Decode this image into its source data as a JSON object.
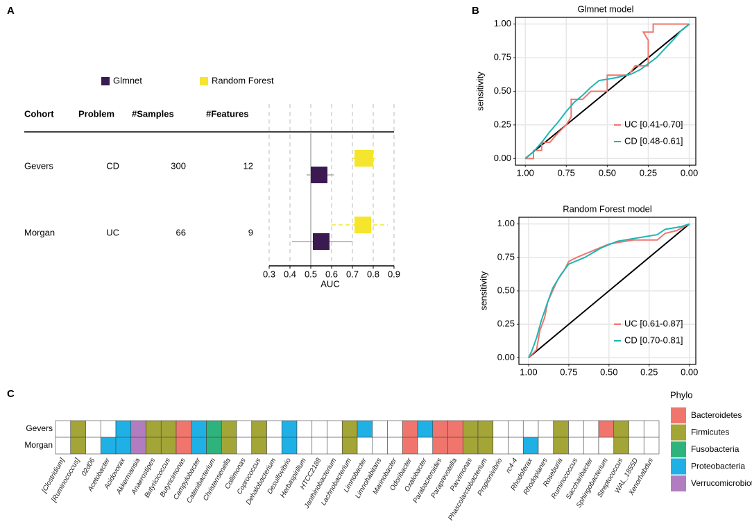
{
  "chart_data": [
    {
      "type": "forest",
      "panel": "A",
      "table": {
        "columns": [
          "Cohort",
          "Problem",
          "#Samples",
          "#Features"
        ],
        "rows": [
          [
            "Gevers",
            "CD",
            300,
            12
          ],
          [
            "Morgan",
            "UC",
            66,
            9
          ]
        ]
      },
      "series": [
        {
          "name": "Glmnet",
          "color": "#3b1a52",
          "whisker_color": "#aaaaaa",
          "whisker_style": "solid",
          "low": [
            0.48,
            0.41
          ],
          "box_low": [
            0.5,
            0.51
          ],
          "box_high": [
            0.58,
            0.59
          ],
          "high": [
            0.61,
            0.7
          ]
        },
        {
          "name": "Random Forest",
          "color": "#f5e52d",
          "whisker_color": "#f5e52d",
          "whisker_style": "dashed",
          "low": [
            0.7,
            0.6
          ],
          "box_low": [
            0.71,
            0.71
          ],
          "box_high": [
            0.8,
            0.79
          ],
          "high": [
            0.81,
            0.87
          ]
        }
      ],
      "xlabel": "AUC",
      "xlim": [
        0.3,
        0.9
      ],
      "xticks": [
        0.3,
        0.4,
        0.5,
        0.6,
        0.7,
        0.8,
        0.9
      ],
      "reference": 0.5,
      "grid": true
    },
    {
      "type": "line",
      "panel": "B",
      "title": "Glmnet model",
      "ylabel": "sensitivity",
      "xlim": [
        1.06,
        -0.04
      ],
      "ylim": [
        -0.05,
        1.05
      ],
      "xticks": [
        {
          "value": 1,
          "label": "1.00"
        },
        {
          "value": 0.75,
          "label": "0.75"
        },
        {
          "value": 0.5,
          "label": "0.50"
        },
        {
          "value": 0.25,
          "label": "0.25"
        },
        {
          "value": 0,
          "label": "0.00"
        }
      ],
      "yticks": [
        {
          "value": 0,
          "label": "0.00"
        },
        {
          "value": 0.25,
          "label": "0.25"
        },
        {
          "value": 0.5,
          "label": "0.50"
        },
        {
          "value": 0.75,
          "label": "0.75"
        },
        {
          "value": 1,
          "label": "1.00"
        }
      ],
      "grid": true,
      "diagonal": true,
      "legend": "bottom-right",
      "series": [
        {
          "name": "UC [0.41-0.70]",
          "color": "#f0766d",
          "x": [
            1,
            0.95,
            0.95,
            0.9,
            0.9,
            0.85,
            0.8,
            0.75,
            0.72,
            0.72,
            0.65,
            0.6,
            0.5,
            0.5,
            0.37,
            0.33,
            0.25,
            0.25,
            0.28,
            0.22,
            0.22,
            0.05,
            0
          ],
          "values": [
            0,
            0,
            0.06,
            0.06,
            0.12,
            0.12,
            0.19,
            0.25,
            0.31,
            0.44,
            0.44,
            0.5,
            0.5,
            0.62,
            0.62,
            0.69,
            0.69,
            0.88,
            0.94,
            0.94,
            1,
            1,
            1
          ]
        },
        {
          "name": "CD [0.48-0.61]",
          "color": "#1fb5b5",
          "x": [
            1,
            0.95,
            0.9,
            0.85,
            0.8,
            0.75,
            0.7,
            0.65,
            0.6,
            0.55,
            0.45,
            0.35,
            0.3,
            0.2,
            0.1,
            0.05,
            0
          ],
          "values": [
            0,
            0.05,
            0.12,
            0.2,
            0.27,
            0.35,
            0.42,
            0.47,
            0.53,
            0.58,
            0.6,
            0.63,
            0.66,
            0.75,
            0.88,
            0.95,
            1
          ]
        }
      ]
    },
    {
      "type": "line",
      "title": "Random Forest model",
      "ylabel": "sensitivity",
      "xlim": [
        1.06,
        -0.04
      ],
      "ylim": [
        -0.05,
        1.05
      ],
      "xticks": [
        {
          "value": 1,
          "label": "1.00"
        },
        {
          "value": 0.75,
          "label": "0.75"
        },
        {
          "value": 0.5,
          "label": "0.50"
        },
        {
          "value": 0.25,
          "label": "0.25"
        },
        {
          "value": 0,
          "label": "0.00"
        }
      ],
      "yticks": [
        {
          "value": 0,
          "label": "0.00"
        },
        {
          "value": 0.25,
          "label": "0.25"
        },
        {
          "value": 0.5,
          "label": "0.50"
        },
        {
          "value": 0.75,
          "label": "0.75"
        },
        {
          "value": 1,
          "label": "1.00"
        }
      ],
      "grid": true,
      "diagonal": true,
      "legend": "bottom-right",
      "series": [
        {
          "name": "UC [0.61-0.87]",
          "color": "#f0766d",
          "x": [
            1,
            0.95,
            0.93,
            0.9,
            0.88,
            0.85,
            0.82,
            0.78,
            0.75,
            0.7,
            0.6,
            0.5,
            0.35,
            0.2,
            0.15,
            0.08,
            0
          ],
          "values": [
            0,
            0.06,
            0.2,
            0.3,
            0.42,
            0.5,
            0.58,
            0.65,
            0.72,
            0.75,
            0.8,
            0.85,
            0.88,
            0.88,
            0.93,
            0.95,
            1
          ]
        },
        {
          "name": "CD [0.70-0.81]",
          "color": "#1fb5b5",
          "x": [
            1,
            0.98,
            0.95,
            0.92,
            0.88,
            0.85,
            0.8,
            0.75,
            0.65,
            0.55,
            0.45,
            0.3,
            0.2,
            0.15,
            0.05,
            0
          ],
          "values": [
            0,
            0.05,
            0.15,
            0.28,
            0.42,
            0.52,
            0.62,
            0.7,
            0.75,
            0.82,
            0.87,
            0.9,
            0.92,
            0.96,
            0.98,
            1
          ]
        }
      ]
    },
    {
      "type": "heatmap",
      "panel": "C",
      "rows": [
        "Gevers",
        "Morgan"
      ],
      "columns": [
        "[Clostridium]",
        "[Ruminococcus]",
        "02d06",
        "Acetobacter",
        "Acidovorax",
        "Akkermansia",
        "Anaerostipes",
        "Butyricicoccus",
        "Butyricimonas",
        "Campylobacter",
        "Catenibacterium",
        "Christensenella",
        "Collimonas",
        "Coprococcus",
        "Dehalobacterium",
        "Desulfovibrio",
        "Herbaspirillum",
        "HTCC2188",
        "Janthinobacterium",
        "Lachnobacterium",
        "Limnobacter",
        "Limnohabitans",
        "Marinobacter",
        "Odoribacter",
        "Oxalobacter",
        "Parabacteroides",
        "Paraprevotella",
        "Parvimonas",
        "Phascolarctobacterium",
        "Propionivibrio",
        "rc4-4",
        "Rhodoferax",
        "Rhodoplanes",
        "Roseburia",
        "Ruminococcus",
        "Saccharibacter",
        "Sphingobacterium",
        "Streptococcus",
        "WAL_1855D",
        "Xenorhabdus"
      ],
      "values": [
        [
          null,
          "Firmicutes",
          null,
          null,
          "Proteobacteria",
          "Verrucomicrobiota",
          "Firmicutes",
          "Firmicutes",
          "Bacteroidetes",
          "Proteobacteria",
          "Fusobacteria",
          "Firmicutes",
          null,
          "Firmicutes",
          null,
          "Proteobacteria",
          null,
          null,
          null,
          "Firmicutes",
          "Proteobacteria",
          null,
          null,
          "Bacteroidetes",
          "Proteobacteria",
          "Bacteroidetes",
          "Bacteroidetes",
          "Firmicutes",
          "Firmicutes",
          null,
          null,
          null,
          null,
          "Firmicutes",
          null,
          null,
          "Bacteroidetes",
          "Firmicutes",
          null,
          null
        ],
        [
          null,
          "Firmicutes",
          null,
          "Proteobacteria",
          "Proteobacteria",
          "Verrucomicrobiota",
          "Firmicutes",
          "Firmicutes",
          "Bacteroidetes",
          "Proteobacteria",
          "Fusobacteria",
          "Firmicutes",
          null,
          "Firmicutes",
          null,
          "Proteobacteria",
          null,
          null,
          null,
          "Firmicutes",
          null,
          null,
          null,
          "Bacteroidetes",
          null,
          "Bacteroidetes",
          "Bacteroidetes",
          "Firmicutes",
          "Firmicutes",
          null,
          null,
          "Proteobacteria",
          null,
          "Firmicutes",
          null,
          null,
          null,
          "Firmicutes",
          null,
          null
        ]
      ],
      "legend_title": "Phylo",
      "legend": [
        {
          "name": "Bacteroidetes",
          "color": "#f0766d"
        },
        {
          "name": "Firmicutes",
          "color": "#a3a537"
        },
        {
          "name": "Fusobacteria",
          "color": "#2fb37c"
        },
        {
          "name": "Proteobacteria",
          "color": "#1fb0e6"
        },
        {
          "name": "Verrucomicrobiota",
          "color": "#b27dc0"
        }
      ]
    }
  ]
}
